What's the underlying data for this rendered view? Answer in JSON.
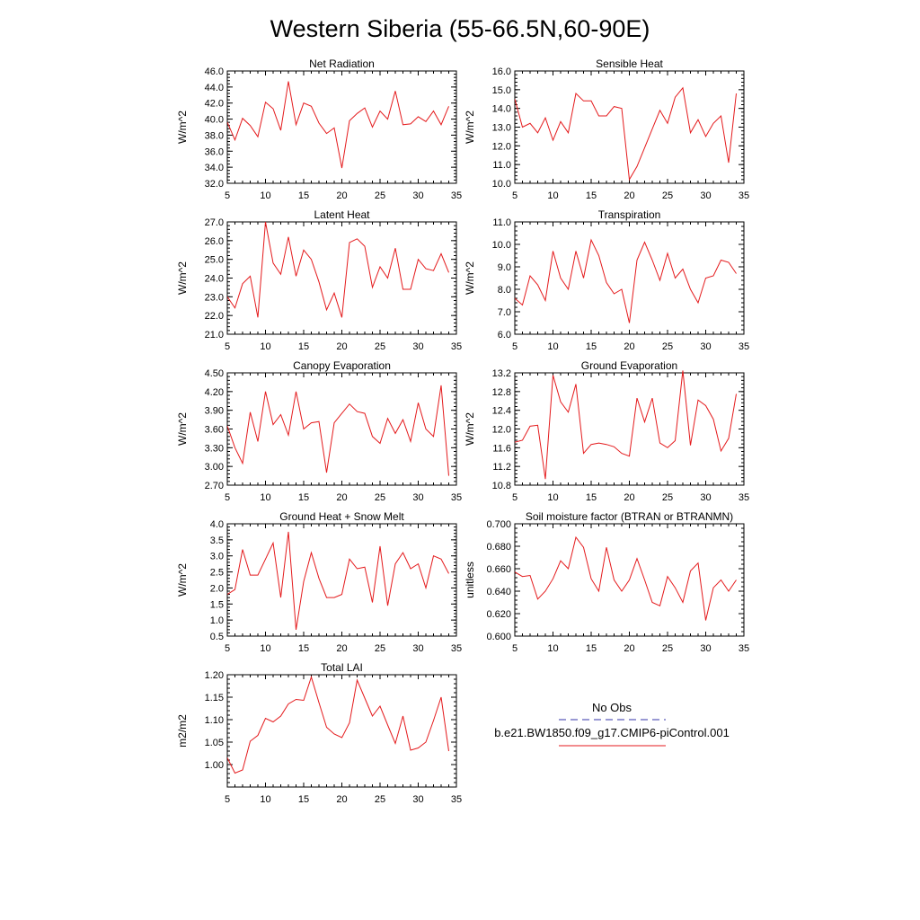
{
  "page": {
    "title": "Western Siberia (55-66.5N,60-90E)"
  },
  "legend": {
    "items": [
      {
        "label": "No Obs",
        "color": "#3333aa",
        "dash": true
      },
      {
        "label": "b.e21.BW1850.f09_g17.CMIP6-piControl.001",
        "color": "#e41a1c",
        "dash": false
      }
    ]
  },
  "chart_data": [
    {
      "type": "line",
      "title": "Net Radiation",
      "ylabel": "W/m^2",
      "xlim": [
        5,
        35
      ],
      "ylim": [
        32,
        46
      ],
      "xticks": [
        5,
        10,
        15,
        20,
        25,
        30,
        35
      ],
      "yticks": [
        "32.0",
        "34.0",
        "36.0",
        "38.0",
        "40.0",
        "42.0",
        "44.0",
        "46.0"
      ],
      "series": [
        {
          "color": "#e41a1c",
          "x": [
            5,
            6,
            7,
            8,
            9,
            10,
            11,
            12,
            13,
            14,
            15,
            16,
            17,
            18,
            19,
            20,
            21,
            22,
            23,
            24,
            25,
            26,
            27,
            28,
            29,
            30,
            31,
            32,
            33,
            34
          ],
          "values": [
            39.6,
            37.4,
            40.1,
            39.2,
            37.8,
            42.1,
            41.3,
            38.6,
            44.7,
            39.3,
            42.0,
            41.6,
            39.5,
            38.2,
            38.9,
            33.9,
            39.8,
            40.7,
            41.4,
            39.0,
            41.0,
            40.0,
            43.5,
            39.3,
            39.4,
            40.3,
            39.7,
            41.0,
            39.3,
            41.6
          ]
        }
      ]
    },
    {
      "type": "line",
      "title": "Sensible Heat",
      "ylabel": "W/m^2",
      "xlim": [
        5,
        35
      ],
      "ylim": [
        10,
        16
      ],
      "xticks": [
        5,
        10,
        15,
        20,
        25,
        30,
        35
      ],
      "yticks": [
        "10.0",
        "11.0",
        "12.0",
        "13.0",
        "14.0",
        "15.0",
        "16.0"
      ],
      "series": [
        {
          "color": "#e41a1c",
          "x": [
            5,
            6,
            7,
            8,
            9,
            10,
            11,
            12,
            13,
            14,
            15,
            16,
            17,
            18,
            19,
            20,
            21,
            22,
            23,
            24,
            25,
            26,
            27,
            28,
            29,
            30,
            31,
            32,
            33,
            34
          ],
          "values": [
            14.5,
            13.0,
            13.2,
            12.7,
            13.5,
            12.3,
            13.3,
            12.7,
            14.8,
            14.4,
            14.4,
            13.6,
            13.6,
            14.1,
            14.0,
            10.2,
            10.9,
            11.9,
            12.9,
            13.9,
            13.2,
            14.6,
            15.1,
            12.7,
            13.4,
            12.5,
            13.2,
            13.6,
            11.1,
            14.8
          ]
        }
      ]
    },
    {
      "type": "line",
      "title": "Latent Heat",
      "ylabel": "W/m^2",
      "xlim": [
        5,
        35
      ],
      "ylim": [
        21,
        27
      ],
      "xticks": [
        5,
        10,
        15,
        20,
        25,
        30,
        35
      ],
      "yticks": [
        "21.0",
        "22.0",
        "23.0",
        "24.0",
        "25.0",
        "26.0",
        "27.0"
      ],
      "series": [
        {
          "color": "#e41a1c",
          "x": [
            5,
            6,
            7,
            8,
            9,
            10,
            11,
            12,
            13,
            14,
            15,
            16,
            17,
            18,
            19,
            20,
            21,
            22,
            23,
            24,
            25,
            26,
            27,
            28,
            29,
            30,
            31,
            32,
            33,
            34
          ],
          "values": [
            23.0,
            22.4,
            23.7,
            24.1,
            21.9,
            27.0,
            24.8,
            24.2,
            26.2,
            24.1,
            25.5,
            25.0,
            23.8,
            22.3,
            23.2,
            21.9,
            25.9,
            26.1,
            25.7,
            23.5,
            24.6,
            24.0,
            25.6,
            23.4,
            23.4,
            25.0,
            24.5,
            24.4,
            25.3,
            24.3
          ]
        }
      ]
    },
    {
      "type": "line",
      "title": "Transpiration",
      "ylabel": "W/m^2",
      "xlim": [
        5,
        35
      ],
      "ylim": [
        6,
        11
      ],
      "xticks": [
        5,
        10,
        15,
        20,
        25,
        30,
        35
      ],
      "yticks": [
        "6.0",
        "7.0",
        "8.0",
        "9.0",
        "10.0",
        "11.0"
      ],
      "series": [
        {
          "color": "#e41a1c",
          "x": [
            5,
            6,
            7,
            8,
            9,
            10,
            11,
            12,
            13,
            14,
            15,
            16,
            17,
            18,
            19,
            20,
            21,
            22,
            23,
            24,
            25,
            26,
            27,
            28,
            29,
            30,
            31,
            32,
            33,
            34
          ],
          "values": [
            7.6,
            7.3,
            8.6,
            8.2,
            7.5,
            9.7,
            8.5,
            8.0,
            9.7,
            8.5,
            10.2,
            9.5,
            8.3,
            7.8,
            8.0,
            6.5,
            9.3,
            10.1,
            9.3,
            8.4,
            9.6,
            8.5,
            8.9,
            8.0,
            7.4,
            8.5,
            8.6,
            9.3,
            9.2,
            8.7
          ]
        }
      ]
    },
    {
      "type": "line",
      "title": "Canopy Evaporation",
      "ylabel": "W/m^2",
      "xlim": [
        5,
        35
      ],
      "ylim": [
        2.7,
        4.5
      ],
      "xticks": [
        5,
        10,
        15,
        20,
        25,
        30,
        35
      ],
      "yticks": [
        "2.70",
        "3.00",
        "3.30",
        "3.60",
        "3.90",
        "4.20",
        "4.50"
      ],
      "series": [
        {
          "color": "#e41a1c",
          "x": [
            5,
            6,
            7,
            8,
            9,
            10,
            11,
            12,
            13,
            14,
            15,
            16,
            17,
            18,
            19,
            20,
            21,
            22,
            23,
            24,
            25,
            26,
            27,
            28,
            29,
            30,
            31,
            32,
            33,
            34
          ],
          "values": [
            3.65,
            3.3,
            3.05,
            3.87,
            3.4,
            4.2,
            3.67,
            3.83,
            3.5,
            4.2,
            3.6,
            3.7,
            3.72,
            2.9,
            3.7,
            3.85,
            4.0,
            3.88,
            3.85,
            3.48,
            3.37,
            3.77,
            3.53,
            3.75,
            3.4,
            4.02,
            3.6,
            3.48,
            4.3,
            2.85
          ]
        }
      ]
    },
    {
      "type": "line",
      "title": "Ground Evaporation",
      "ylabel": "W/m^2",
      "xlim": [
        5,
        35
      ],
      "ylim": [
        10.8,
        13.2
      ],
      "xticks": [
        5,
        10,
        15,
        20,
        25,
        30,
        35
      ],
      "yticks": [
        "10.8",
        "11.2",
        "11.6",
        "12.0",
        "12.4",
        "12.8",
        "13.2"
      ],
      "series": [
        {
          "color": "#e41a1c",
          "x": [
            5,
            6,
            7,
            8,
            9,
            10,
            11,
            12,
            13,
            14,
            15,
            16,
            17,
            18,
            19,
            20,
            21,
            22,
            23,
            24,
            25,
            26,
            27,
            28,
            29,
            30,
            31,
            32,
            33,
            34
          ],
          "values": [
            11.72,
            11.76,
            12.06,
            12.08,
            10.93,
            13.15,
            12.58,
            12.36,
            12.96,
            11.48,
            11.67,
            11.7,
            11.67,
            11.62,
            11.48,
            11.42,
            12.66,
            12.15,
            12.66,
            11.7,
            11.6,
            11.75,
            13.25,
            11.65,
            12.62,
            12.5,
            12.21,
            11.53,
            11.8,
            12.75
          ]
        }
      ]
    },
    {
      "type": "line",
      "title": "Ground Heat + Snow Melt",
      "ylabel": "W/m^2",
      "xlim": [
        5,
        35
      ],
      "ylim": [
        0.5,
        4.0
      ],
      "xticks": [
        5,
        10,
        15,
        20,
        25,
        30,
        35
      ],
      "yticks": [
        "0.5",
        "1.0",
        "1.5",
        "2.0",
        "2.5",
        "3.0",
        "3.5",
        "4.0"
      ],
      "series": [
        {
          "color": "#e41a1c",
          "x": [
            5,
            6,
            7,
            8,
            9,
            10,
            11,
            12,
            13,
            14,
            15,
            16,
            17,
            18,
            19,
            20,
            21,
            22,
            23,
            24,
            25,
            26,
            27,
            28,
            29,
            30,
            31,
            32,
            33,
            34
          ],
          "values": [
            1.8,
            1.95,
            3.2,
            2.4,
            2.4,
            2.9,
            3.4,
            1.7,
            3.75,
            0.7,
            2.2,
            3.1,
            2.3,
            1.7,
            1.7,
            1.8,
            2.9,
            2.6,
            2.65,
            1.55,
            3.3,
            1.45,
            2.75,
            3.1,
            2.6,
            2.75,
            2.0,
            3.0,
            2.9,
            2.45
          ]
        }
      ]
    },
    {
      "type": "line",
      "title": "Soil moisture factor (BTRAN or BTRANMN)",
      "ylabel": "unitless",
      "xlim": [
        5,
        35
      ],
      "ylim": [
        0.6,
        0.7
      ],
      "xticks": [
        5,
        10,
        15,
        20,
        25,
        30,
        35
      ],
      "yticks": [
        "0.600",
        "0.620",
        "0.640",
        "0.660",
        "0.680",
        "0.700"
      ],
      "series": [
        {
          "color": "#e41a1c",
          "x": [
            5,
            6,
            7,
            8,
            9,
            10,
            11,
            12,
            13,
            14,
            15,
            16,
            17,
            18,
            19,
            20,
            21,
            22,
            23,
            24,
            25,
            26,
            27,
            28,
            29,
            30,
            31,
            32,
            33,
            34
          ],
          "values": [
            0.657,
            0.653,
            0.654,
            0.633,
            0.64,
            0.651,
            0.667,
            0.66,
            0.688,
            0.679,
            0.651,
            0.64,
            0.679,
            0.65,
            0.64,
            0.65,
            0.669,
            0.65,
            0.63,
            0.627,
            0.653,
            0.643,
            0.63,
            0.658,
            0.665,
            0.614,
            0.643,
            0.65,
            0.64,
            0.65
          ]
        }
      ]
    },
    {
      "type": "line",
      "title": "Total LAI",
      "ylabel": "m2/m2",
      "xlim": [
        5,
        35
      ],
      "ylim": [
        0.95,
        1.2
      ],
      "xticks": [
        5,
        10,
        15,
        20,
        25,
        30,
        35
      ],
      "yticks": [
        "1.00",
        "1.05",
        "1.10",
        "1.15",
        "1.20"
      ],
      "series": [
        {
          "color": "#e41a1c",
          "x": [
            5,
            6,
            7,
            8,
            9,
            10,
            11,
            12,
            13,
            14,
            15,
            16,
            17,
            18,
            19,
            20,
            21,
            22,
            23,
            24,
            25,
            26,
            27,
            28,
            29,
            30,
            31,
            32,
            33,
            34
          ],
          "values": [
            1.015,
            0.981,
            0.988,
            1.052,
            1.065,
            1.103,
            1.095,
            1.108,
            1.135,
            1.145,
            1.143,
            1.195,
            1.138,
            1.083,
            1.068,
            1.06,
            1.093,
            1.188,
            1.148,
            1.108,
            1.13,
            1.088,
            1.047,
            1.108,
            1.032,
            1.037,
            1.05,
            1.098,
            1.15,
            1.03
          ]
        }
      ]
    }
  ]
}
